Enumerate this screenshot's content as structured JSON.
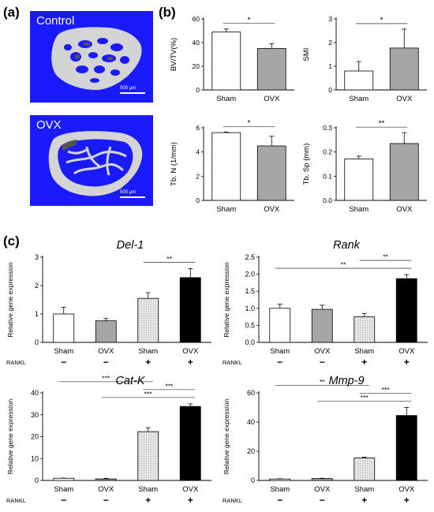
{
  "panels": {
    "a": "(a)",
    "b": "(b)",
    "c": "(c)"
  },
  "micro_ct": [
    {
      "label": "Control",
      "scale": "500 μm"
    },
    {
      "label": "OVX",
      "scale": "500 μm"
    }
  ],
  "colors": {
    "background_blue": "#1a1aff",
    "bone": "#d4d4d4",
    "sham": "#ffffff",
    "ovx": "#a6a6a6",
    "sham_rankl": "#e6e6e6",
    "ovx_rankl": "#000000"
  },
  "chart_data": [
    {
      "id": "bvtv",
      "type": "bar",
      "categories": [
        "Sham",
        "OVX"
      ],
      "values": [
        49,
        35
      ],
      "errors": [
        2.5,
        4
      ],
      "fills": [
        "sham",
        "ovx"
      ],
      "ylabel": "BV/TV(%)",
      "ylim": [
        0,
        60
      ],
      "yticks": [
        0,
        20,
        40,
        60
      ],
      "yfmt": 0,
      "sig": [
        {
          "from": 0,
          "to": 1,
          "label": "*"
        }
      ],
      "grid": false
    },
    {
      "id": "smi",
      "type": "bar",
      "categories": [
        "Sham",
        "OVX"
      ],
      "values": [
        0.8,
        1.77
      ],
      "errors": [
        0.4,
        0.8
      ],
      "fills": [
        "sham",
        "ovx"
      ],
      "ylabel": "SMI",
      "ylim": [
        0,
        3
      ],
      "yticks": [
        0,
        1,
        2,
        3
      ],
      "yfmt": 0,
      "sig": [
        {
          "from": 0,
          "to": 1,
          "label": "*"
        }
      ],
      "grid": false
    },
    {
      "id": "tbn",
      "type": "bar",
      "categories": [
        "Sham",
        "OVX"
      ],
      "values": [
        5.6,
        4.5
      ],
      "errors": [
        0.05,
        0.8
      ],
      "fills": [
        "sham",
        "ovx"
      ],
      "ylabel": "Tb. N (1/mm)",
      "ylim": [
        0,
        6
      ],
      "yticks": [
        0,
        2,
        4,
        6
      ],
      "yfmt": 0,
      "sig": [
        {
          "from": 0,
          "to": 1,
          "label": "*"
        }
      ],
      "grid": false
    },
    {
      "id": "tbsp",
      "type": "bar",
      "categories": [
        "Sham",
        "OVX"
      ],
      "values": [
        0.171,
        0.235
      ],
      "errors": [
        0.012,
        0.045
      ],
      "fills": [
        "sham",
        "ovx"
      ],
      "ylabel": "Tb. Sp (mm)",
      "ylim": [
        0,
        0.3
      ],
      "yticks": [
        0,
        0.1,
        0.2,
        0.3
      ],
      "yfmt": 1,
      "sig": [
        {
          "from": 0,
          "to": 1,
          "label": "**"
        }
      ],
      "grid": false
    },
    {
      "id": "del1",
      "type": "bar",
      "title": "Del-1",
      "categories": [
        "Sham",
        "OVX",
        "Sham",
        "OVX"
      ],
      "rankl": [
        "−",
        "−",
        "+",
        "+"
      ],
      "rankl_label": "RANKL",
      "values": [
        1.0,
        0.76,
        1.55,
        2.28
      ],
      "errors": [
        0.24,
        0.08,
        0.2,
        0.32
      ],
      "fills": [
        "sham",
        "ovx",
        "sham_rankl",
        "ovx_rankl"
      ],
      "ylabel": "Relative gene expression",
      "ylim": [
        0,
        3
      ],
      "yticks": [
        0,
        1,
        2,
        3
      ],
      "yfmt": 0,
      "sig": [
        {
          "from": 2,
          "to": 3,
          "label": "**"
        }
      ],
      "grid": false
    },
    {
      "id": "rank",
      "type": "bar",
      "title": "Rank",
      "categories": [
        "Sham",
        "OVX",
        "Sham",
        "OVX"
      ],
      "rankl": [
        "−",
        "−",
        "+",
        "+"
      ],
      "rankl_label": "RANKL",
      "values": [
        1.0,
        0.97,
        0.75,
        1.87
      ],
      "errors": [
        0.12,
        0.12,
        0.1,
        0.12
      ],
      "fills": [
        "sham",
        "ovx",
        "sham_rankl",
        "ovx_rankl"
      ],
      "ylabel": "Relative gene expression",
      "ylim": [
        0,
        2.5
      ],
      "yticks": [
        0,
        0.5,
        1,
        1.5,
        2,
        2.5
      ],
      "yfmt": 1,
      "sig": [
        {
          "from": 0,
          "to": 3,
          "label": "**"
        },
        {
          "from": 2,
          "to": 3,
          "label": "**"
        }
      ],
      "grid": false
    },
    {
      "id": "catk",
      "type": "bar",
      "title": "Cat-K",
      "categories": [
        "Sham",
        "OVX",
        "Sham",
        "OVX"
      ],
      "rankl": [
        "−",
        "−",
        "+",
        "+"
      ],
      "rankl_label": "RANKL",
      "values": [
        1.0,
        0.7,
        22.3,
        33.8
      ],
      "errors": [
        0.1,
        0.3,
        1.8,
        1.2
      ],
      "fills": [
        "sham",
        "ovx",
        "sham_rankl",
        "ovx_rankl"
      ],
      "ylabel": "Relative gene expression",
      "ylim": [
        0,
        40
      ],
      "yticks": [
        0,
        10,
        20,
        30,
        40
      ],
      "yfmt": 0,
      "sig": [
        {
          "from": 1,
          "to": 3,
          "label": "***"
        },
        {
          "from": 2,
          "to": 3,
          "label": "***"
        },
        {
          "from": 0,
          "to": 2,
          "label": "***"
        }
      ],
      "grid": false
    },
    {
      "id": "mmp9",
      "type": "bar",
      "title": "Mmp-9",
      "categories": [
        "Sham",
        "OVX",
        "Sham",
        "OVX"
      ],
      "rankl": [
        "−",
        "−",
        "+",
        "+"
      ],
      "rankl_label": "RANKL",
      "values": [
        1.0,
        1.3,
        15.5,
        44.5
      ],
      "errors": [
        0.2,
        0.2,
        0.5,
        5.5
      ],
      "fills": [
        "sham",
        "ovx",
        "sham_rankl",
        "ovx_rankl"
      ],
      "ylabel": "Relative gene expression",
      "ylim": [
        0,
        60
      ],
      "yticks": [
        0,
        20,
        40,
        60
      ],
      "yfmt": 0,
      "sig": [
        {
          "from": 1,
          "to": 3,
          "label": "***"
        },
        {
          "from": 2,
          "to": 3,
          "label": "***"
        },
        {
          "from": 0,
          "to": 2,
          "label": "**"
        }
      ],
      "grid": false
    }
  ]
}
